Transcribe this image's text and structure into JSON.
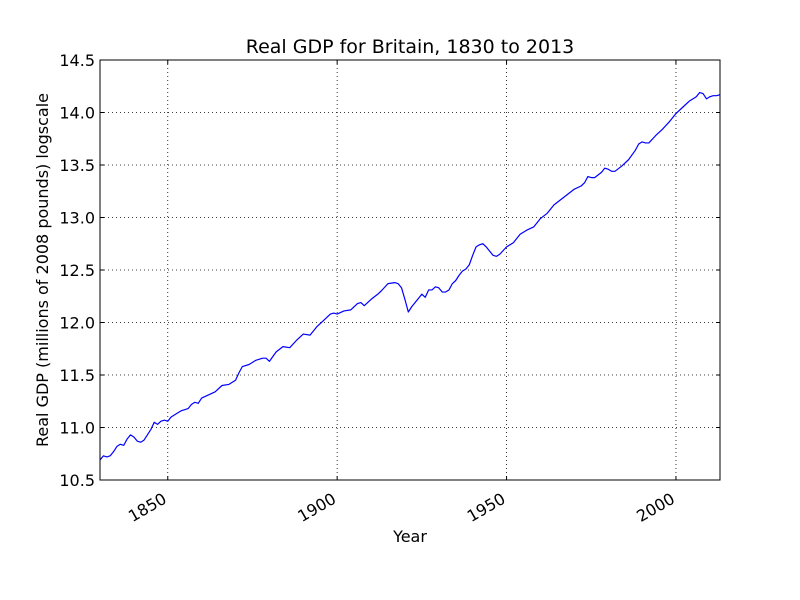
{
  "chart_data": {
    "type": "line",
    "title": "Real GDP for Britain, 1830 to 2013",
    "xlabel": "Year",
    "ylabel": "Real GDP (millions of 2008 pounds) logscale",
    "xlim": [
      1830,
      2013
    ],
    "ylim": [
      10.5,
      14.5
    ],
    "grid": true,
    "x_ticks": [
      1850,
      1900,
      1950,
      2000
    ],
    "x_tick_labels": [
      "1850",
      "1900",
      "1950",
      "2000"
    ],
    "y_ticks": [
      10.5,
      11.0,
      11.5,
      12.0,
      12.5,
      13.0,
      13.5,
      14.0,
      14.5
    ],
    "y_tick_labels": [
      "10.5",
      "11.0",
      "11.5",
      "12.0",
      "12.5",
      "13.0",
      "13.5",
      "14.0",
      "14.5"
    ],
    "line_color": "#0000ff",
    "series": [
      {
        "x": [
          1830,
          1831,
          1832,
          1833,
          1834,
          1835,
          1836,
          1837,
          1838,
          1839,
          1840,
          1841,
          1842,
          1843,
          1844,
          1845,
          1846,
          1847,
          1848,
          1849,
          1850,
          1851,
          1852,
          1853,
          1854,
          1855,
          1856,
          1857,
          1858,
          1859,
          1860,
          1862,
          1864,
          1866,
          1868,
          1870,
          1871,
          1872,
          1874,
          1876,
          1878,
          1879,
          1880,
          1882,
          1884,
          1886,
          1888,
          1890,
          1892,
          1894,
          1896,
          1898,
          1899,
          1900,
          1902,
          1904,
          1906,
          1907,
          1908,
          1910,
          1912,
          1913,
          1915,
          1917,
          1918,
          1919,
          1920,
          1921,
          1922,
          1924,
          1925,
          1926,
          1927,
          1928,
          1929,
          1930,
          1931,
          1932,
          1933,
          1934,
          1935,
          1936,
          1937,
          1938,
          1939,
          1940,
          1941,
          1942,
          1943,
          1944,
          1945,
          1946,
          1947,
          1948,
          1950,
          1952,
          1954,
          1956,
          1958,
          1960,
          1962,
          1964,
          1966,
          1968,
          1970,
          1972,
          1973,
          1974,
          1975,
          1976,
          1978,
          1979,
          1980,
          1981,
          1982,
          1984,
          1986,
          1988,
          1989,
          1990,
          1991,
          1992,
          1994,
          1996,
          1998,
          2000,
          2002,
          2004,
          2006,
          2007,
          2008,
          2009,
          2010,
          2011,
          2012,
          2013
        ],
        "values": [
          10.69,
          10.73,
          10.72,
          10.73,
          10.77,
          10.82,
          10.84,
          10.83,
          10.89,
          10.93,
          10.91,
          10.87,
          10.86,
          10.88,
          10.93,
          10.98,
          11.05,
          11.03,
          11.06,
          11.07,
          11.06,
          11.1,
          11.12,
          11.14,
          11.16,
          11.17,
          11.18,
          11.22,
          11.24,
          11.23,
          11.28,
          11.31,
          11.34,
          11.4,
          11.41,
          11.45,
          11.52,
          11.58,
          11.6,
          11.64,
          11.66,
          11.66,
          11.63,
          11.72,
          11.77,
          11.76,
          11.83,
          11.89,
          11.88,
          11.96,
          12.02,
          12.08,
          12.09,
          12.08,
          12.11,
          12.12,
          12.18,
          12.19,
          12.16,
          12.22,
          12.27,
          12.3,
          12.37,
          12.38,
          12.37,
          12.33,
          12.22,
          12.1,
          12.15,
          12.23,
          12.27,
          12.24,
          12.31,
          12.31,
          12.34,
          12.33,
          12.29,
          12.29,
          12.31,
          12.37,
          12.4,
          12.45,
          12.49,
          12.51,
          12.55,
          12.64,
          12.72,
          12.74,
          12.75,
          12.72,
          12.68,
          12.64,
          12.63,
          12.65,
          12.72,
          12.76,
          12.84,
          12.88,
          12.91,
          12.99,
          13.04,
          13.12,
          13.17,
          13.22,
          13.27,
          13.3,
          13.33,
          13.39,
          13.38,
          13.38,
          13.43,
          13.47,
          13.46,
          13.44,
          13.44,
          13.49,
          13.55,
          13.64,
          13.7,
          13.72,
          13.71,
          13.71,
          13.78,
          13.84,
          13.91,
          13.99,
          14.05,
          14.11,
          14.15,
          14.19,
          14.18,
          14.13,
          14.15,
          14.16,
          14.16,
          14.17
        ]
      }
    ]
  }
}
